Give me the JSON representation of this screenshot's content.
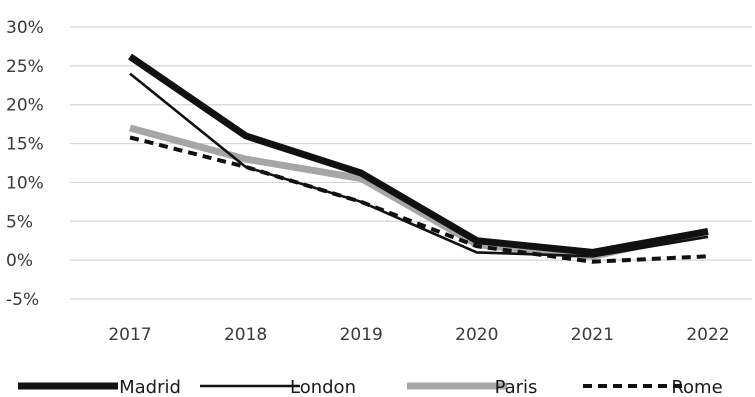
{
  "chart_data": {
    "type": "line",
    "title": "",
    "xlabel": "",
    "ylabel": "",
    "x": [
      "2017",
      "2018",
      "2019",
      "2020",
      "2021",
      "2022"
    ],
    "y_ticks": [
      "30%",
      "25%",
      "20%",
      "15%",
      "10%",
      "5%",
      "0%",
      "-5%"
    ],
    "ylim": [
      -5,
      30
    ],
    "grid": true,
    "legend_position": "bottom",
    "series": [
      {
        "name": "Madrid",
        "values": [
          26.2,
          16.0,
          11.2,
          2.5,
          1.0,
          3.7
        ],
        "color": "#111111",
        "style": "thick"
      },
      {
        "name": "London",
        "values": [
          24.0,
          12.0,
          7.5,
          1.0,
          0.5,
          3.0
        ],
        "color": "#111111",
        "style": "thin"
      },
      {
        "name": "Paris",
        "values": [
          17.0,
          13.0,
          10.5,
          2.0,
          0.5,
          3.7
        ],
        "color": "#a6a6a6",
        "style": "thick"
      },
      {
        "name": "Rome",
        "values": [
          15.8,
          12.0,
          7.5,
          1.8,
          -0.2,
          0.5
        ],
        "color": "#111111",
        "style": "dashed"
      }
    ]
  }
}
